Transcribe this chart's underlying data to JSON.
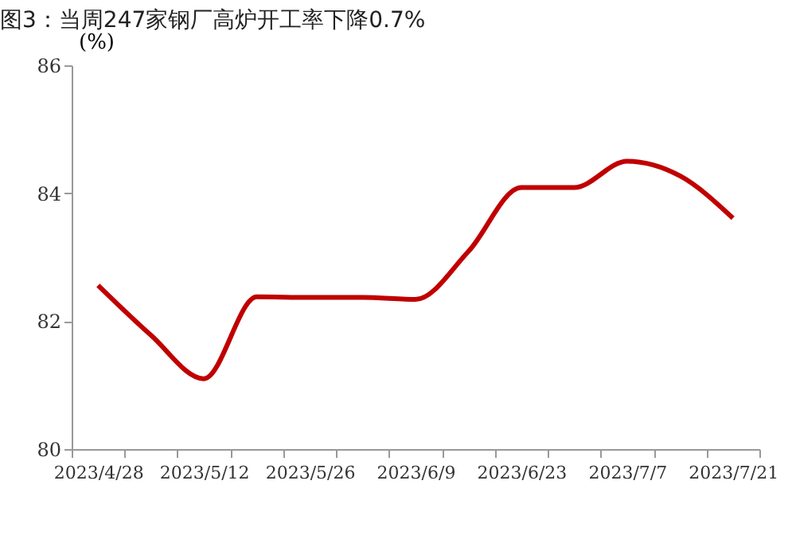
{
  "chart_data": {
    "type": "line",
    "title": "图3：当周247家钢厂高炉开工率下降0.7%",
    "ylabel": "(%)",
    "categories": [
      "2023/4/28",
      null,
      "2023/5/12",
      null,
      "2023/5/26",
      null,
      "2023/6/9",
      null,
      "2023/6/23",
      null,
      "2023/7/7",
      null,
      "2023/7/21"
    ],
    "series": [
      {
        "color": "#c00000",
        "values": [
          82.56,
          81.78,
          81.1,
          82.38,
          82.37,
          82.37,
          82.34,
          83.09,
          84.09,
          84.09,
          84.5,
          84.27,
          83.61
        ]
      }
    ],
    "ylim": [
      80,
      86
    ],
    "yticks": [
      80,
      82,
      84,
      86
    ],
    "grid": false,
    "marker": "none",
    "line_style": "solid"
  }
}
